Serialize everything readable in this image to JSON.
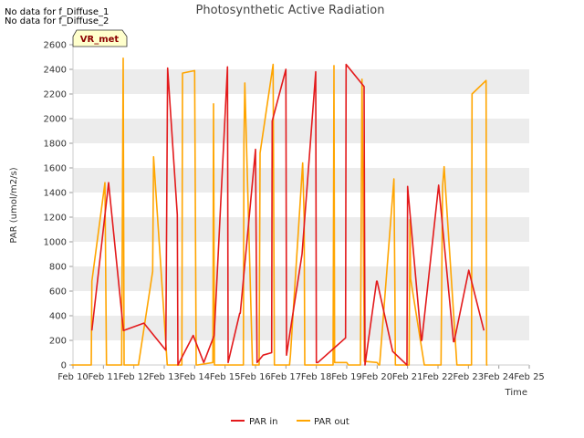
{
  "notes": [
    "No data for f_Diffuse_1",
    "No data for f_Diffuse_2"
  ],
  "badge": "VR_met",
  "colors": {
    "par_in": "#e31a1c",
    "par_out": "#ffa500",
    "band": "#ececec",
    "badge_bg": "#ffffcc"
  },
  "chart_data": {
    "type": "line",
    "title": "Photosynthetic Active Radiation",
    "xlabel": "Time",
    "ylabel": "PAR (umol/m2/s)",
    "xlim": [
      10,
      25
    ],
    "ylim": [
      0,
      2600
    ],
    "yticks": [
      0,
      200,
      400,
      600,
      800,
      1000,
      1200,
      1400,
      1600,
      1800,
      2000,
      2200,
      2400,
      2600
    ],
    "xticks": [
      10,
      11,
      12,
      13,
      14,
      15,
      16,
      17,
      18,
      19,
      20,
      21,
      22,
      23,
      24,
      25
    ],
    "xtick_labels": [
      "Feb 10",
      "Feb 11",
      "Feb 12",
      "Feb 13",
      "Feb 14",
      "Feb 15",
      "Feb 16",
      "Feb 17",
      "Feb 18",
      "Feb 19",
      "Feb 20",
      "Feb 21",
      "Feb 22",
      "Feb 23",
      "Feb 24",
      "Feb 25"
    ],
    "grid": "horizontal bands",
    "legend": "bottom-center",
    "series": [
      {
        "name": "PAR in",
        "color": "#e31a1c",
        "x": [
          10.62,
          11.17,
          11.66,
          12.33,
          13.05,
          13.11,
          13.43,
          13.45,
          13.95,
          14.3,
          14.64,
          15.08,
          15.1,
          15.48,
          15.5,
          16.0,
          16.05,
          16.25,
          16.53,
          16.55,
          17.0,
          17.02,
          17.53,
          17.98,
          18.0,
          18.05,
          18.96,
          18.98,
          19.57,
          19.6,
          19.98,
          20.0,
          20.51,
          20.98,
          21.0,
          21.45,
          21.47,
          22.02,
          22.51,
          22.53,
          23.01,
          23.51
        ],
        "y": [
          280,
          1480,
          280,
          340,
          120,
          2410,
          1220,
          0,
          240,
          20,
          240,
          2420,
          20,
          420,
          420,
          1750,
          20,
          80,
          100,
          1980,
          2400,
          80,
          900,
          2380,
          20,
          20,
          220,
          2440,
          2260,
          0,
          680,
          680,
          110,
          0,
          1450,
          200,
          200,
          1460,
          190,
          190,
          770,
          280
        ]
      },
      {
        "name": "PAR out",
        "color": "#ffa500",
        "x": [
          9.95,
          10.05,
          10.15,
          10.2,
          10.6,
          10.62,
          11.05,
          11.1,
          11.12,
          11.15,
          11.6,
          11.65,
          11.68,
          12.1,
          12.13,
          12.15,
          12.62,
          12.65,
          13.1,
          13.13,
          13.15,
          13.2,
          13.58,
          13.6,
          14.0,
          14.05,
          14.1,
          14.6,
          14.62,
          14.65,
          15.1,
          15.12,
          15.6,
          15.62,
          15.65,
          15.9,
          16.1,
          16.12,
          16.15,
          16.58,
          16.62,
          16.65,
          17.1,
          17.12,
          17.15,
          17.55,
          17.6,
          17.62,
          18.08,
          18.1,
          18.15,
          18.55,
          18.58,
          18.6,
          19.0,
          19.05,
          19.08,
          19.45,
          19.5,
          19.53,
          19.58,
          20.0,
          20.05,
          20.08,
          20.55,
          20.58,
          20.6,
          20.9,
          21.05,
          21.08,
          21.1,
          21.55,
          21.6,
          21.62,
          22.1,
          22.15,
          22.2,
          22.62,
          22.65,
          22.7,
          23.05,
          23.1,
          23.12,
          23.58,
          23.6,
          23.63
        ],
        "y": [
          0,
          0,
          0,
          0,
          0,
          680,
          1480,
          0,
          0,
          0,
          0,
          2490,
          0,
          0,
          0,
          0,
          760,
          1690,
          0,
          0,
          0,
          0,
          0,
          2370,
          2390,
          0,
          0,
          20,
          2120,
          0,
          0,
          0,
          0,
          1800,
          2290,
          0,
          0,
          0,
          1720,
          2440,
          0,
          0,
          0,
          0,
          80,
          1640,
          1200,
          0,
          0,
          0,
          0,
          0,
          2430,
          20,
          20,
          0,
          0,
          0,
          2320,
          1580,
          30,
          20,
          0,
          0,
          1510,
          680,
          0,
          0,
          0,
          1180,
          700,
          0,
          0,
          0,
          0,
          1450,
          1610,
          0,
          0,
          0,
          0,
          0,
          2200,
          2310,
          0,
          0
        ]
      }
    ]
  }
}
